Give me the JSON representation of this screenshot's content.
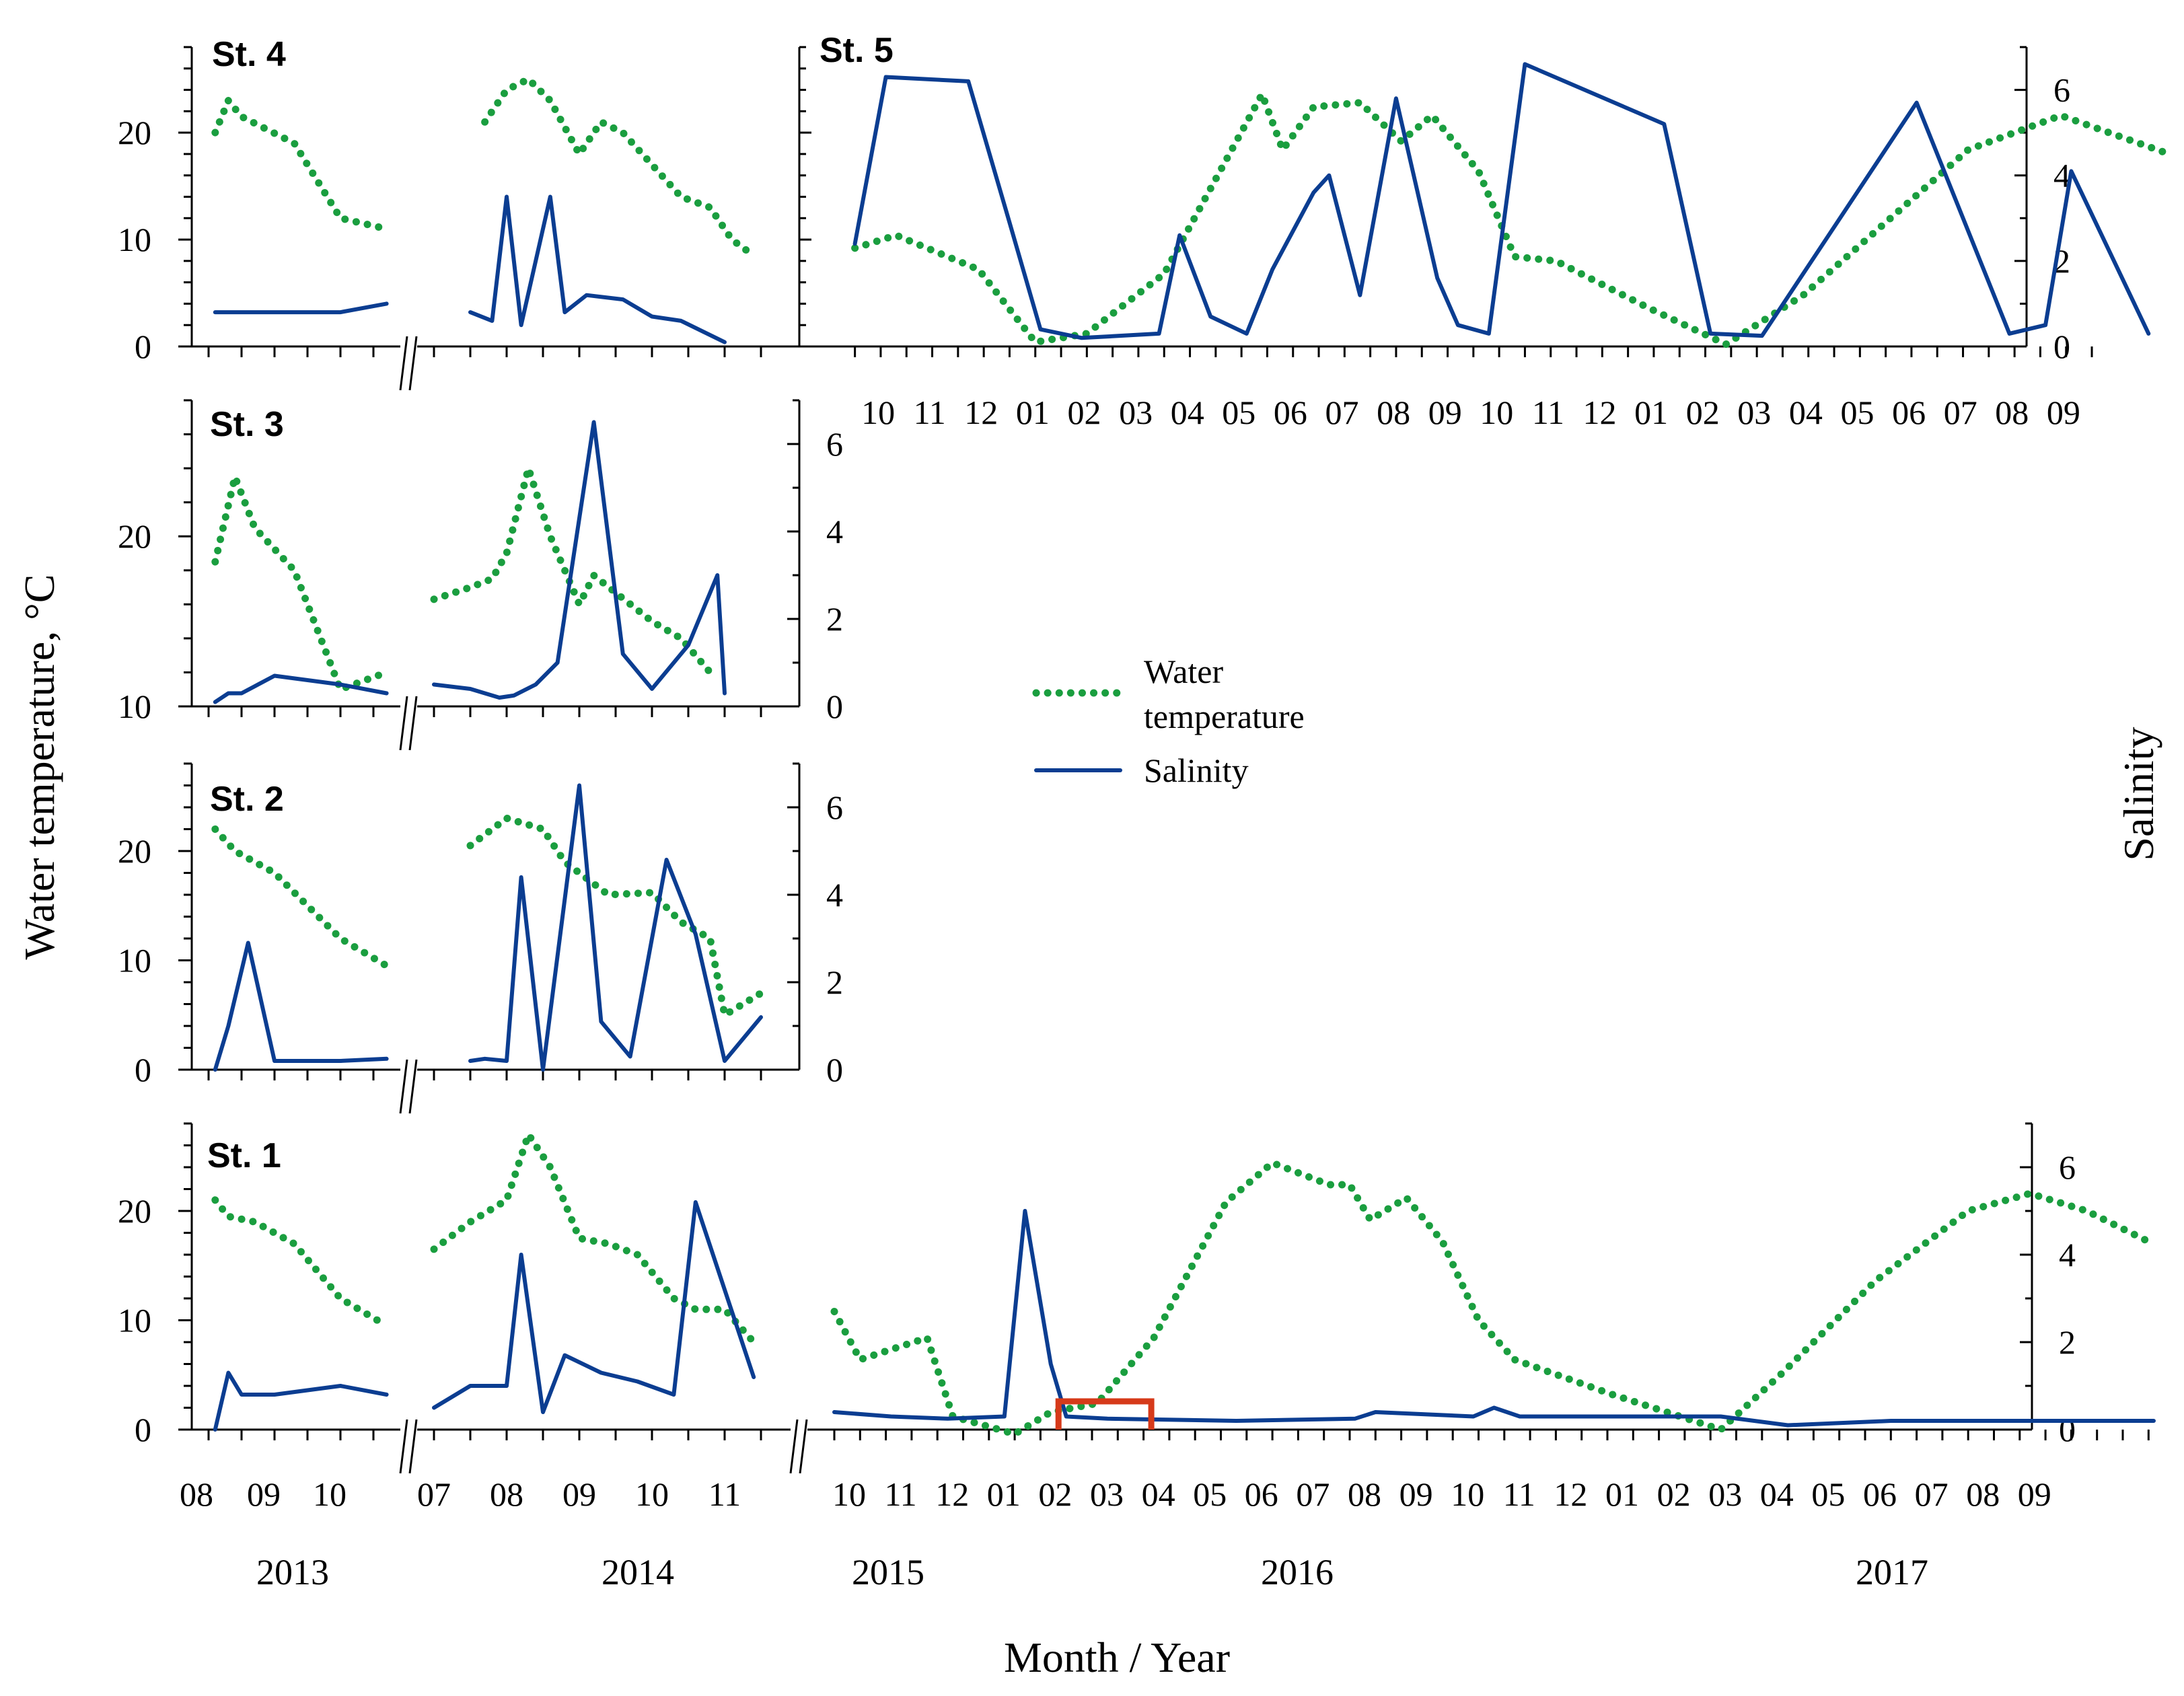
{
  "chart_data": {
    "type": "line",
    "xlabel": "Month / Year",
    "ylabel_left": "Water temperature, °C",
    "ylabel_right": "Salinity",
    "colors": {
      "temperature": "#1a9e3f",
      "salinity": "#0b3d91",
      "ice_marker": "#d63a1a"
    },
    "legend": {
      "temperature": "Water temperature",
      "salinity": "Salinity"
    },
    "years": [
      "2013",
      "2014",
      "2015",
      "2016",
      "2017"
    ],
    "x_axis_labels": {
      "st5": [
        "10",
        "11",
        "12",
        "01",
        "02",
        "03",
        "04",
        "05",
        "06",
        "07",
        "08",
        "09",
        "10",
        "11",
        "12",
        "01",
        "02",
        "03",
        "04",
        "05",
        "06",
        "07",
        "08",
        "09"
      ],
      "bottom_2013": [
        "08",
        "09",
        "10"
      ],
      "bottom_2014": [
        "07",
        "08",
        "09",
        "10",
        "11"
      ],
      "bottom_2015_2017": [
        "10",
        "11",
        "12",
        "01",
        "02",
        "03",
        "04",
        "05",
        "06",
        "07",
        "08",
        "09",
        "10",
        "11",
        "12",
        "01",
        "02",
        "03",
        "04",
        "05",
        "06",
        "07",
        "08",
        "09"
      ]
    },
    "panels": [
      {
        "id": "st4",
        "title": "St. 4",
        "temp_ticks": [
          "0",
          "10",
          "20"
        ],
        "sal_ticks": [],
        "temperature": [
          [
            [
              8.1,
              20
            ],
            [
              8.3,
              23
            ],
            [
              8.5,
              21.5
            ],
            [
              9.3,
              19
            ],
            [
              10,
              12
            ],
            [
              10.7,
              11
            ]
          ],
          [
            [
              7.7,
              21
            ],
            [
              8,
              24
            ],
            [
              8.3,
              25
            ],
            [
              8.6,
              23
            ],
            [
              9,
              18
            ],
            [
              9.3,
              21
            ],
            [
              9.6,
              20
            ],
            [
              10,
              17
            ],
            [
              10.4,
              14
            ],
            [
              10.8,
              13
            ],
            [
              11.1,
              10
            ],
            [
              11.3,
              9
            ]
          ]
        ],
        "salinity": [
          [
            [
              8.1,
              0.8
            ],
            [
              9,
              0.8
            ],
            [
              10,
              0.8
            ],
            [
              10.7,
              1
            ]
          ],
          [
            [
              7.5,
              0.8
            ],
            [
              7.8,
              0.6
            ],
            [
              8,
              3.5
            ],
            [
              8.2,
              0.5
            ],
            [
              8.6,
              3.5
            ],
            [
              8.8,
              0.8
            ],
            [
              9.1,
              1.2
            ],
            [
              9.6,
              1.1
            ],
            [
              10,
              0.7
            ],
            [
              10.4,
              0.6
            ],
            [
              11,
              0.1
            ]
          ]
        ]
      },
      {
        "id": "st5",
        "title": "St. 5",
        "temp_ticks": [],
        "sal_ticks": [
          "0",
          "2",
          "4",
          "6"
        ],
        "temperature": [
          [
            [
              0,
              2.3
            ],
            [
              0.8,
              2.6
            ],
            [
              2.4,
              1.8
            ],
            [
              3.5,
              0.1
            ],
            [
              4.5,
              0.3
            ],
            [
              6,
              1.7
            ],
            [
              7.9,
              5.9
            ],
            [
              8.3,
              4.6
            ],
            [
              8.9,
              5.6
            ],
            [
              9.8,
              5.7
            ],
            [
              10.6,
              4.8
            ],
            [
              11.2,
              5.4
            ],
            [
              12.1,
              4.1
            ],
            [
              12.8,
              2.1
            ],
            [
              13.6,
              2
            ],
            [
              15.4,
              0.9
            ],
            [
              16.9,
              0.05
            ],
            [
              18.4,
              1.2
            ],
            [
              21.6,
              4.6
            ],
            [
              23.4,
              5.4
            ],
            [
              25.5,
              4.5
            ]
          ]
        ],
        "salinity": [
          [
            [
              0,
              2.4
            ],
            [
              0.6,
              6.3
            ],
            [
              2.2,
              6.2
            ],
            [
              3,
              2.9
            ],
            [
              3.6,
              0.4
            ],
            [
              4.4,
              0.2
            ],
            [
              5.9,
              0.3
            ],
            [
              6.3,
              2.6
            ],
            [
              6.9,
              0.7
            ],
            [
              7.6,
              0.3
            ],
            [
              8.1,
              1.8
            ],
            [
              8.9,
              3.6
            ],
            [
              9.2,
              4
            ],
            [
              9.8,
              1.2
            ],
            [
              10.5,
              5.8
            ],
            [
              11.3,
              1.6
            ],
            [
              11.7,
              0.5
            ],
            [
              12.3,
              0.3
            ],
            [
              13,
              6.6
            ],
            [
              15.7,
              5.2
            ],
            [
              16.6,
              0.3
            ],
            [
              17.6,
              0.25
            ],
            [
              20.6,
              5.7
            ],
            [
              22.4,
              0.3
            ],
            [
              23.1,
              0.5
            ],
            [
              23.6,
              4.1
            ],
            [
              25.1,
              0.3
            ]
          ]
        ]
      },
      {
        "id": "st3",
        "title": "St. 3",
        "temp_ticks": [
          "10",
          "20"
        ],
        "sal_ticks": [
          "0",
          "2",
          "4",
          "6"
        ],
        "temperature": [
          [
            [
              8.1,
              18.5
            ],
            [
              8.4,
              23.5
            ],
            [
              8.7,
              20.5
            ],
            [
              9.3,
              18
            ],
            [
              10,
              11
            ],
            [
              10.7,
              12
            ]
          ],
          [
            [
              7,
              16.3
            ],
            [
              7.5,
              17
            ],
            [
              7.8,
              17.5
            ],
            [
              8,
              19
            ],
            [
              8.3,
              24
            ],
            [
              8.6,
              20
            ],
            [
              9,
              16
            ],
            [
              9.2,
              17.7
            ],
            [
              10,
              15
            ],
            [
              10.4,
              14
            ],
            [
              10.8,
              12
            ]
          ]
        ],
        "salinity": [
          [
            [
              8.1,
              0.1
            ],
            [
              8.3,
              0.3
            ],
            [
              8.5,
              0.3
            ],
            [
              9,
              0.7
            ],
            [
              10,
              0.5
            ],
            [
              10.7,
              0.3
            ]
          ],
          [
            [
              7,
              0.5
            ],
            [
              7.5,
              0.4
            ],
            [
              7.9,
              0.2
            ],
            [
              8.1,
              0.25
            ],
            [
              8.4,
              0.5
            ],
            [
              8.7,
              1
            ],
            [
              9.2,
              6.5
            ],
            [
              9.6,
              1.2
            ],
            [
              10,
              0.4
            ],
            [
              10.5,
              1.4
            ],
            [
              10.9,
              3
            ],
            [
              11,
              0.3
            ]
          ]
        ]
      },
      {
        "id": "st2",
        "title": "St. 2",
        "temp_ticks": [
          "0",
          "10",
          "20"
        ],
        "sal_ticks": [
          "0",
          "2",
          "4",
          "6"
        ],
        "temperature": [
          [
            [
              8.1,
              22
            ],
            [
              8.4,
              20
            ],
            [
              9,
              18
            ],
            [
              10,
              12
            ],
            [
              10.7,
              9.5
            ]
          ],
          [
            [
              7.5,
              20.5
            ],
            [
              8,
              23
            ],
            [
              8.5,
              22
            ],
            [
              8.8,
              19
            ],
            [
              9.4,
              16
            ],
            [
              10,
              16.2
            ],
            [
              10.4,
              13.5
            ],
            [
              10.8,
              12
            ],
            [
              11,
              5
            ],
            [
              11.5,
              7
            ]
          ]
        ],
        "salinity": [
          [
            [
              8.1,
              0
            ],
            [
              8.3,
              1
            ],
            [
              8.6,
              2.9
            ],
            [
              9,
              0.2
            ],
            [
              10,
              0.2
            ],
            [
              10.7,
              0.25
            ]
          ],
          [
            [
              7.5,
              0.2
            ],
            [
              7.7,
              0.25
            ],
            [
              8,
              0.2
            ],
            [
              8.2,
              4.4
            ],
            [
              8.5,
              0
            ],
            [
              9,
              6.5
            ],
            [
              9.3,
              1.1
            ],
            [
              9.7,
              0.3
            ],
            [
              10.2,
              4.8
            ],
            [
              10.6,
              3.1
            ],
            [
              11,
              0.2
            ],
            [
              11.5,
              1.2
            ]
          ]
        ]
      },
      {
        "id": "st1",
        "title": "St. 1",
        "temp_ticks": [
          "0",
          "10",
          "20"
        ],
        "sal_ticks": [
          "0",
          "2",
          "4",
          "6"
        ],
        "temperature": [
          [
            [
              8.1,
              21
            ],
            [
              8.3,
              19.5
            ],
            [
              8.7,
              19
            ],
            [
              9.3,
              17
            ],
            [
              10,
              12
            ],
            [
              10.7,
              9.5
            ]
          ],
          [
            [
              7,
              16.5
            ],
            [
              7.5,
              19
            ],
            [
              8,
              21
            ],
            [
              8.3,
              27
            ],
            [
              8.6,
              24
            ],
            [
              9,
              17.5
            ],
            [
              9.4,
              17
            ],
            [
              9.8,
              16
            ],
            [
              10.3,
              12
            ],
            [
              10.6,
              11
            ],
            [
              11,
              11
            ],
            [
              11.4,
              8
            ]
          ]
        ],
        "salinity": [
          [
            [
              8.1,
              0
            ],
            [
              8.3,
              1.3
            ],
            [
              8.5,
              0.8
            ],
            [
              9,
              0.8
            ],
            [
              10,
              1
            ],
            [
              10.7,
              0.8
            ]
          ],
          [
            [
              7,
              0.5
            ],
            [
              7.5,
              1
            ],
            [
              8,
              1
            ],
            [
              8.2,
              4
            ],
            [
              8.5,
              0.4
            ],
            [
              8.8,
              1.7
            ],
            [
              9.3,
              1.3
            ],
            [
              9.8,
              1.1
            ],
            [
              10.3,
              0.8
            ],
            [
              10.6,
              5.2
            ],
            [
              11.4,
              1.2
            ]
          ]
        ],
        "temperature_2015_2017": [
          [
            0,
            2.7
          ],
          [
            0.5,
            1.6
          ],
          [
            1.8,
            2.1
          ],
          [
            2.3,
            0.3
          ],
          [
            3.5,
            -0.1
          ],
          [
            4.2,
            0.4
          ],
          [
            5.1,
            0.6
          ],
          [
            6.2,
            2.1
          ],
          [
            7.6,
            5.2
          ],
          [
            8.5,
            6.1
          ],
          [
            9.6,
            5.6
          ],
          [
            10,
            5.6
          ],
          [
            10.4,
            4.8
          ],
          [
            11.1,
            5.3
          ],
          [
            11.8,
            4.3
          ],
          [
            12.5,
            2.5
          ],
          [
            13.2,
            1.6
          ],
          [
            15.1,
            0.8
          ],
          [
            17.2,
            0
          ],
          [
            18.4,
            1.3
          ],
          [
            20.2,
            3.4
          ],
          [
            22,
            5
          ],
          [
            23.2,
            5.4
          ],
          [
            24.3,
            5
          ],
          [
            25.5,
            4.3
          ]
        ],
        "salinity_2015_2017": [
          [
            0,
            0.4
          ],
          [
            1.1,
            0.3
          ],
          [
            2.2,
            0.25
          ],
          [
            3.3,
            0.3
          ],
          [
            3.7,
            5
          ],
          [
            4.2,
            1.5
          ],
          [
            4.5,
            0.3
          ],
          [
            5.3,
            0.25
          ],
          [
            7.8,
            0.2
          ],
          [
            10.1,
            0.25
          ],
          [
            10.5,
            0.4
          ],
          [
            12.4,
            0.3
          ],
          [
            12.8,
            0.5
          ],
          [
            13.3,
            0.3
          ],
          [
            17.2,
            0.3
          ],
          [
            18.5,
            0.1
          ],
          [
            20.5,
            0.2
          ],
          [
            25.6,
            0.2
          ]
        ],
        "ice_period": [
          4.35,
          6.15
        ]
      }
    ]
  }
}
